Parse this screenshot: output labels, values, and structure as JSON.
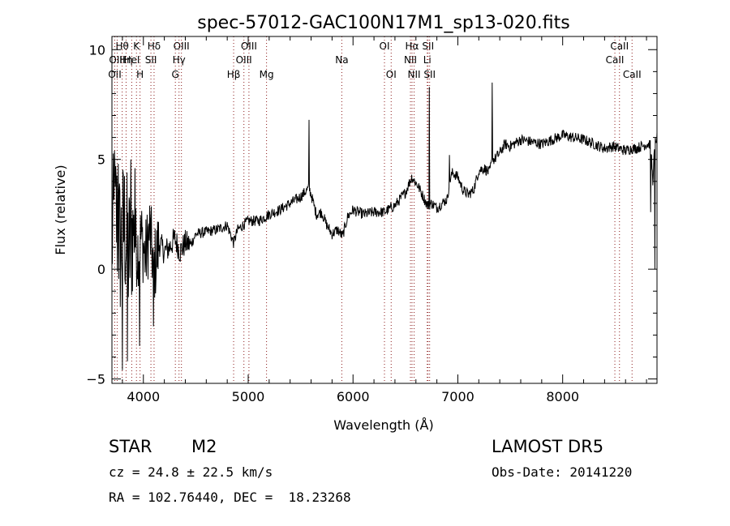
{
  "info": {
    "object_class": "STAR",
    "subclass": "M2",
    "survey": "LAMOST DR5",
    "redshift_text": "cz = 24.8 ± 22.5 km/s",
    "obs_date_text": "Obs-Date: 20141220",
    "coords_text": "RA = 102.76440, DEC =  18.23268"
  },
  "chart_data": {
    "type": "line",
    "title": "spec-57012-GAC100N17M1_sp13-020.fits",
    "xlabel": "Wavelength (Å)",
    "ylabel": "Flux (relative)",
    "xlim": [
      3700,
      8900
    ],
    "ylim": [
      -5.2,
      10.6
    ],
    "x_ticks": [
      4000,
      5000,
      6000,
      7000,
      8000
    ],
    "x_tick_labels": [
      "4000",
      "5000",
      "6000",
      "7000",
      "8000"
    ],
    "y_ticks": [
      -5,
      0,
      5,
      10
    ],
    "y_tick_labels": [
      "−5",
      "0",
      "5",
      "10"
    ],
    "grid": false,
    "line_color": "#000000",
    "marker_color": "#8b1a1a",
    "lines": [
      {
        "label": "OII",
        "x": 3727,
        "row": 2
      },
      {
        "label": "Hθ",
        "x": 3798,
        "row": 0
      },
      {
        "label": "OIII",
        "x": 3750,
        "row": 1
      },
      {
        "label": "Hη",
        "x": 3835,
        "row": 1
      },
      {
        "label": "HeI",
        "x": 3889,
        "row": 1
      },
      {
        "label": "K",
        "x": 3934,
        "row": 0
      },
      {
        "label": "H",
        "x": 3968,
        "row": 2
      },
      {
        "label": "Hδ",
        "x": 4102,
        "row": 0
      },
      {
        "label": "SII",
        "x": 4072,
        "row": 1
      },
      {
        "label": "OIII",
        "x": 4363,
        "row": 0
      },
      {
        "label": "Hγ",
        "x": 4340,
        "row": 1
      },
      {
        "label": "G",
        "x": 4305,
        "row": 2
      },
      {
        "label": "Hβ",
        "x": 4861,
        "row": 2
      },
      {
        "label": "OIII",
        "x": 4959,
        "row": 1
      },
      {
        "label": "OIII",
        "x": 5007,
        "row": 0
      },
      {
        "label": "Mg",
        "x": 5175,
        "row": 2
      },
      {
        "label": "Na",
        "x": 5893,
        "row": 1
      },
      {
        "label": "OI",
        "x": 6300,
        "row": 0
      },
      {
        "label": "OI",
        "x": 6364,
        "row": 2
      },
      {
        "label": "NII",
        "x": 6548,
        "row": 1
      },
      {
        "label": "Hα",
        "x": 6563,
        "row": 0
      },
      {
        "label": "NII",
        "x": 6583,
        "row": 2
      },
      {
        "label": "SII",
        "x": 6716,
        "row": 0
      },
      {
        "label": "Li",
        "x": 6708,
        "row": 1
      },
      {
        "label": "SII",
        "x": 6731,
        "row": 2
      },
      {
        "label": "CaII",
        "x": 8498,
        "row": 1
      },
      {
        "label": "CaII",
        "x": 8542,
        "row": 0
      },
      {
        "label": "CaII",
        "x": 8662,
        "row": 2
      }
    ],
    "series": [
      {
        "values_anchor_x": [
          3700,
          3740,
          3780,
          3820,
          3860,
          3900,
          3940,
          3980,
          4020,
          4060,
          4100,
          4150,
          4200,
          4250,
          4300,
          4350,
          4400,
          4450,
          4500,
          4600,
          4700,
          4800,
          4860,
          4900,
          5000,
          5100,
          5200,
          5300,
          5400,
          5500,
          5580,
          5600,
          5650,
          5700,
          5750,
          5800,
          5850,
          5900,
          5950,
          6000,
          6100,
          6200,
          6300,
          6400,
          6500,
          6560,
          6620,
          6680,
          6710,
          6750,
          6800,
          6850,
          6900,
          6920,
          6950,
          7000,
          7050,
          7100,
          7150,
          7200,
          7250,
          7300,
          7330,
          7350,
          7400,
          7450,
          7500,
          7600,
          7700,
          7800,
          7900,
          8000,
          8100,
          8200,
          8300,
          8400,
          8480,
          8540,
          8600,
          8660,
          8700,
          8750,
          8800,
          8840,
          8860,
          8880,
          8900
        ],
        "values_anchor_y": [
          1.5,
          2.5,
          1.0,
          2.0,
          0.5,
          2.0,
          0.8,
          1.5,
          0.5,
          1.8,
          0.0,
          1.2,
          0.8,
          1.0,
          1.4,
          0.8,
          1.2,
          1.1,
          1.6,
          1.7,
          1.8,
          2.0,
          1.2,
          1.8,
          2.2,
          2.2,
          2.5,
          2.7,
          3.0,
          3.3,
          3.7,
          3.4,
          2.5,
          2.6,
          2.0,
          1.6,
          1.8,
          1.5,
          2.4,
          2.7,
          2.5,
          2.6,
          2.6,
          2.9,
          3.5,
          4.2,
          3.8,
          3.2,
          2.9,
          3.0,
          2.8,
          3.0,
          3.2,
          4.0,
          4.4,
          4.2,
          3.6,
          3.4,
          3.6,
          4.5,
          4.6,
          4.4,
          5.0,
          5.0,
          5.3,
          5.7,
          5.6,
          5.9,
          5.8,
          5.7,
          5.9,
          6.1,
          6.0,
          5.9,
          5.7,
          5.5,
          5.6,
          5.5,
          5.4,
          5.5,
          5.5,
          5.6,
          5.7,
          5.7,
          4.0,
          5.8,
          6.0
        ],
        "noise_regions": [
          {
            "x_start": 3700,
            "x_end": 3900,
            "amplitude": 3.5
          },
          {
            "x_start": 3900,
            "x_end": 4150,
            "amplitude": 1.8
          },
          {
            "x_start": 4150,
            "x_end": 4450,
            "amplitude": 0.6
          },
          {
            "x_start": 4450,
            "x_end": 8900,
            "amplitude": 0.25
          }
        ],
        "spikes": [
          {
            "x": 3725,
            "y": 5.4
          },
          {
            "x": 3760,
            "y": 4.8
          },
          {
            "x": 3800,
            "y": -4.6
          },
          {
            "x": 3850,
            "y": -4.2
          },
          {
            "x": 3880,
            "y": 5.0
          },
          {
            "x": 3920,
            "y": 4.6
          },
          {
            "x": 3965,
            "y": -3.5
          },
          {
            "x": 4095,
            "y": -2.6
          },
          {
            "x": 5582,
            "y": 6.8
          },
          {
            "x": 6730,
            "y": 8.3
          },
          {
            "x": 6920,
            "y": 5.2
          },
          {
            "x": 7330,
            "y": 8.5
          },
          {
            "x": 8840,
            "y": 2.6
          },
          {
            "x": 8880,
            "y": 0.0
          }
        ]
      }
    ]
  }
}
